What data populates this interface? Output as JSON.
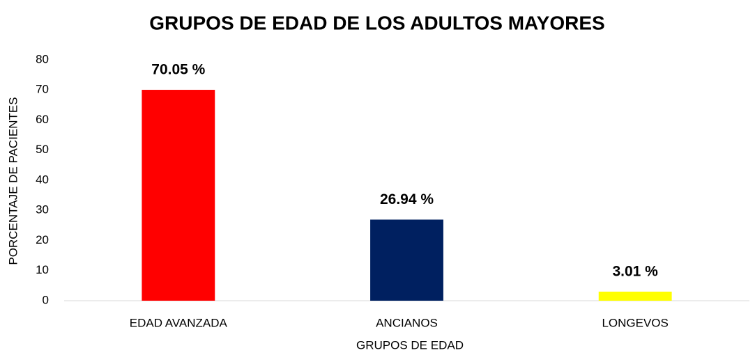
{
  "chart_data": {
    "type": "bar",
    "title": "GRUPOS DE EDAD DE LOS ADULTOS MAYORES",
    "x_label": "GRUPOS DE EDAD",
    "y_label": "PORCENTAJE DE PACIENTES",
    "categories": [
      "EDAD AVANZADA",
      "ANCIANOS",
      "LONGEVOS"
    ],
    "values": [
      70.05,
      26.94,
      3.01
    ],
    "value_labels": [
      "70.05 %",
      "26.94 %",
      "3.01 %"
    ],
    "colors": [
      "#ff0000",
      "#002060",
      "#ffff00"
    ],
    "ylim": [
      0,
      80
    ],
    "yticks": [
      0,
      10,
      20,
      30,
      40,
      50,
      60,
      70,
      80
    ],
    "grid": false
  }
}
